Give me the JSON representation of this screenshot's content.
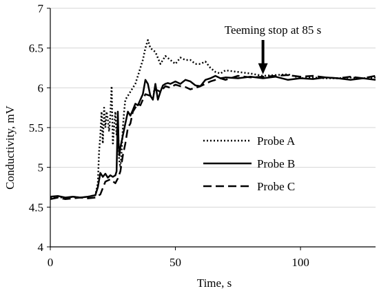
{
  "chart_data": {
    "type": "line",
    "xlabel": "Time, s",
    "ylabel": "Conductivity, mV",
    "xlim": [
      0,
      130
    ],
    "ylim": [
      4,
      7
    ],
    "xticks": [
      0,
      50,
      100
    ],
    "yticks": [
      4,
      4.5,
      5,
      5.5,
      6,
      6.5,
      7
    ],
    "ytick_labels": [
      "4",
      "4.5",
      "5",
      "5.5",
      "6",
      "6.5",
      "7"
    ],
    "grid": "horizontal",
    "legend_position": "center-right",
    "annotation": {
      "text": "Teeming stop at 85 s",
      "x": 85,
      "y": 6.17
    },
    "series": [
      {
        "name": "Probe A",
        "style": "dotted",
        "x": [
          0,
          3,
          6,
          9,
          12,
          15,
          18,
          19,
          19.5,
          20,
          20.5,
          21,
          21.5,
          22,
          22.5,
          23,
          23.5,
          24,
          24.5,
          25,
          25.5,
          26,
          26.5,
          27,
          27.5,
          28,
          28.5,
          29,
          29.5,
          30,
          31,
          32,
          33,
          34,
          35,
          36,
          37,
          38,
          39,
          40,
          42,
          44,
          46,
          48,
          50,
          52,
          54,
          56,
          58,
          60,
          62,
          64,
          66,
          68,
          70,
          75,
          80,
          85,
          90,
          95,
          100,
          105,
          110,
          115,
          120,
          125,
          130
        ],
        "y": [
          4.62,
          4.63,
          4.61,
          4.63,
          4.62,
          4.63,
          4.65,
          4.8,
          5.2,
          5.4,
          5.7,
          5.3,
          5.75,
          5.5,
          5.7,
          5.6,
          5.45,
          5.65,
          6.02,
          5.3,
          5.5,
          5.7,
          5.4,
          5.6,
          5.1,
          5.0,
          5.2,
          5.5,
          5.7,
          5.85,
          5.9,
          5.95,
          6.0,
          6.05,
          6.15,
          6.25,
          6.35,
          6.5,
          6.6,
          6.5,
          6.45,
          6.3,
          6.4,
          6.35,
          6.3,
          6.38,
          6.35,
          6.35,
          6.3,
          6.3,
          6.33,
          6.25,
          6.2,
          6.18,
          6.22,
          6.2,
          6.18,
          6.15,
          6.16,
          6.17,
          6.12,
          6.13,
          6.12,
          6.12,
          6.13,
          6.12,
          6.13
        ]
      },
      {
        "name": "Probe B",
        "style": "solid",
        "x": [
          0,
          3,
          6,
          9,
          12,
          15,
          18,
          19,
          20,
          21,
          22,
          23,
          24,
          25,
          26,
          26.5,
          27,
          27.3,
          27.6,
          28,
          29,
          30,
          31,
          32,
          33,
          34,
          35,
          36,
          37,
          38,
          39,
          40,
          41,
          42,
          43,
          44,
          45,
          46,
          47,
          48,
          50,
          52,
          54,
          56,
          58,
          60,
          62,
          64,
          66,
          68,
          70,
          75,
          80,
          85,
          90,
          95,
          100,
          105,
          110,
          115,
          120,
          125,
          130
        ],
        "y": [
          4.63,
          4.64,
          4.62,
          4.63,
          4.62,
          4.63,
          4.65,
          4.75,
          4.93,
          4.88,
          4.92,
          4.87,
          4.9,
          4.88,
          4.9,
          4.95,
          5.7,
          5.3,
          5.15,
          5.25,
          5.4,
          5.55,
          5.7,
          5.65,
          5.72,
          5.8,
          5.78,
          5.85,
          5.92,
          6.1,
          6.05,
          5.9,
          5.85,
          6.05,
          5.85,
          5.95,
          6.03,
          6.05,
          6.06,
          6.05,
          6.08,
          6.05,
          6.1,
          6.08,
          6.03,
          6.02,
          6.1,
          6.12,
          6.15,
          6.12,
          6.13,
          6.12,
          6.14,
          6.12,
          6.14,
          6.1,
          6.12,
          6.11,
          6.13,
          6.12,
          6.1,
          6.12,
          6.1
        ]
      },
      {
        "name": "Probe C",
        "style": "dashed",
        "x": [
          0,
          3,
          6,
          9,
          12,
          15,
          18,
          20,
          22,
          24,
          26,
          27,
          28,
          29,
          30,
          31,
          32,
          33,
          34,
          35,
          36,
          37,
          38,
          40,
          42,
          44,
          46,
          48,
          50,
          52,
          54,
          56,
          58,
          60,
          62,
          64,
          66,
          68,
          70,
          75,
          80,
          85,
          90,
          95,
          100,
          105,
          110,
          115,
          120,
          125,
          130
        ],
        "y": [
          4.6,
          4.62,
          4.6,
          4.61,
          4.62,
          4.61,
          4.62,
          4.66,
          4.82,
          4.85,
          4.8,
          4.86,
          4.95,
          5.15,
          5.3,
          5.5,
          5.55,
          5.7,
          5.75,
          5.8,
          5.78,
          5.85,
          5.92,
          5.9,
          5.98,
          5.95,
          6.02,
          6.0,
          6.04,
          6.02,
          6.01,
          5.98,
          6.0,
          6.02,
          6.05,
          6.08,
          6.1,
          6.12,
          6.1,
          6.15,
          6.13,
          6.14,
          6.15,
          6.16,
          6.14,
          6.15,
          6.13,
          6.12,
          6.14,
          6.12,
          6.15
        ]
      }
    ]
  }
}
